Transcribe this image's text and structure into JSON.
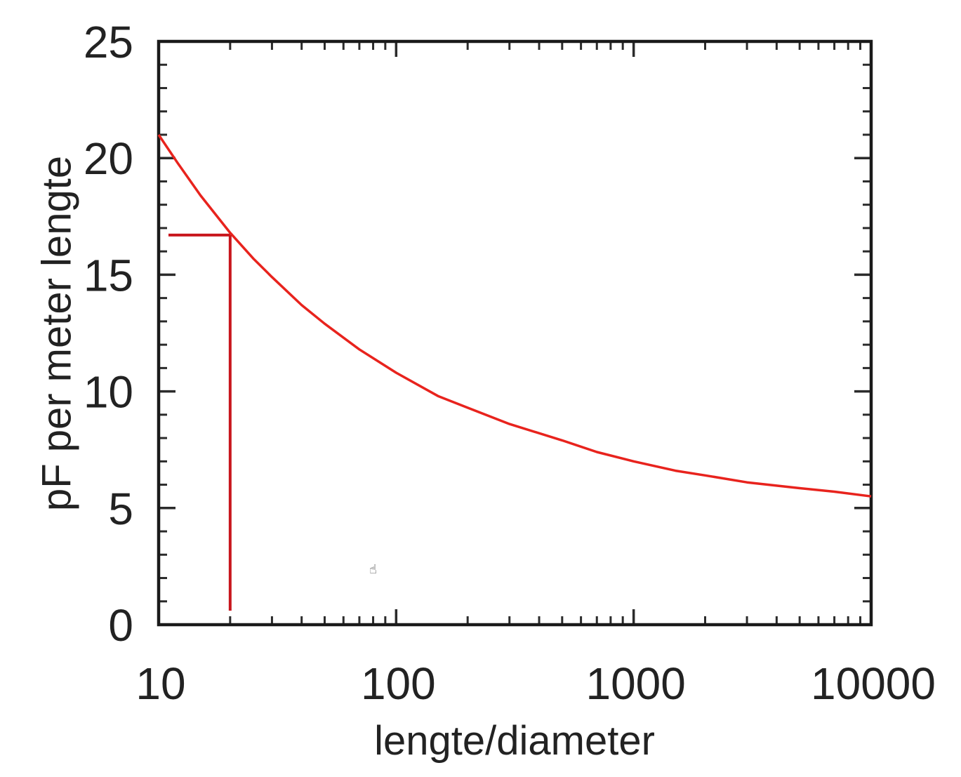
{
  "chart_data": {
    "type": "line",
    "title": "",
    "xlabel": "lengte/diameter",
    "ylabel": "pF per meter lengte",
    "xscale": "log",
    "xlim": [
      10,
      10000
    ],
    "ylim": [
      0,
      25
    ],
    "x_ticks": [
      "10",
      "100",
      "1000",
      "10000"
    ],
    "y_ticks": [
      "0",
      "5",
      "10",
      "15",
      "20",
      "25"
    ],
    "grid": false,
    "legend": "none",
    "series": [
      {
        "color": "#e8231d",
        "x": [
          10,
          12,
          15,
          20,
          25,
          30,
          40,
          50,
          70,
          100,
          150,
          200,
          300,
          500,
          700,
          1000,
          1500,
          2000,
          3000,
          5000,
          7000,
          10000
        ],
        "y": [
          21.0,
          19.8,
          18.4,
          16.8,
          15.7,
          14.9,
          13.7,
          12.9,
          11.8,
          10.8,
          9.8,
          9.3,
          8.6,
          7.9,
          7.4,
          7.0,
          6.6,
          6.4,
          6.1,
          5.85,
          5.7,
          5.5
        ]
      }
    ],
    "annotations": [
      {
        "type": "marker-lines",
        "x": 20,
        "y": 16.7,
        "x_from": 11,
        "y_to": 0.6,
        "color": "#c8161d"
      }
    ]
  },
  "cursor": {
    "icon": "hand-cursor-icon",
    "glyph": "☝",
    "x": 80,
    "y": 2.2
  }
}
